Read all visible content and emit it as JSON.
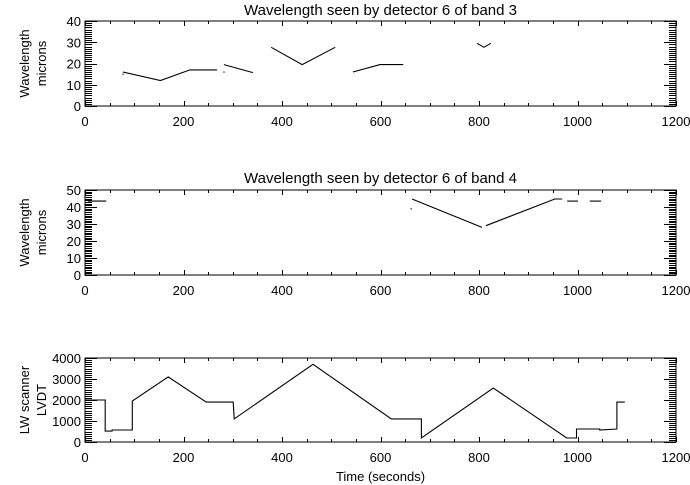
{
  "chart_data": [
    {
      "type": "line",
      "title": "Wavelength seen by detector 6 of band 3",
      "xlabel": "",
      "ylabel": "Wavelength\nmicrons",
      "ylabel_lines": [
        "Wavelength",
        "microns"
      ],
      "xlim": [
        0,
        1200
      ],
      "ylim": [
        0,
        40
      ],
      "xticks": [
        0,
        200,
        400,
        600,
        800,
        1000,
        1200
      ],
      "yticks": [
        0,
        10,
        20,
        30,
        40
      ],
      "grid": false,
      "legend": null,
      "series": [
        {
          "name": "segment-1",
          "x": [
            77
          ],
          "y": [
            15
          ]
        },
        {
          "name": "segment-2",
          "x": [
            77,
            153,
            213,
            268
          ],
          "y": [
            16,
            12,
            17,
            17
          ]
        },
        {
          "name": "segment-3",
          "x": [
            282
          ],
          "y": [
            16
          ]
        },
        {
          "name": "segment-4",
          "x": [
            282,
            341
          ],
          "y": [
            19.5,
            15.7
          ]
        },
        {
          "name": "segment-5",
          "x": [
            378,
            441,
            508
          ],
          "y": [
            27.6,
            19.5,
            27.6
          ]
        },
        {
          "name": "segment-6",
          "x": [
            544,
            599,
            646
          ],
          "y": [
            16,
            19.5,
            19.5
          ]
        },
        {
          "name": "segment-7",
          "x": [
            796,
            810,
            824
          ],
          "y": [
            29.5,
            27.6,
            29.5
          ]
        }
      ]
    },
    {
      "type": "line",
      "title": "Wavelength seen by detector 6 of band 4",
      "xlabel": "",
      "ylabel": "Wavelength\nmicrons",
      "ylabel_lines": [
        "Wavelength",
        "microns"
      ],
      "xlim": [
        0,
        1200
      ],
      "ylim": [
        0,
        50
      ],
      "xticks": [
        0,
        200,
        400,
        600,
        800,
        1000,
        1200
      ],
      "yticks": [
        0,
        10,
        20,
        30,
        40,
        50
      ],
      "grid": false,
      "legend": null,
      "series": [
        {
          "name": "segment-1",
          "x": [
            6,
            43
          ],
          "y": [
            43.5,
            43.5
          ]
        },
        {
          "name": "segment-2",
          "x": [
            662
          ],
          "y": [
            39
          ]
        },
        {
          "name": "segment-3",
          "x": [
            664,
            806
          ],
          "y": [
            44.7,
            28
          ]
        },
        {
          "name": "segment-4",
          "x": [
            814,
            954,
            969
          ],
          "y": [
            29,
            44.7,
            44.7
          ]
        },
        {
          "name": "segment-5",
          "x": [
            979,
            1001
          ],
          "y": [
            43.5,
            43.5
          ]
        },
        {
          "name": "segment-6",
          "x": [
            1025,
            1048
          ],
          "y": [
            43.5,
            43.5
          ]
        }
      ]
    },
    {
      "type": "line",
      "title": "",
      "xlabel": "Time (seconds)",
      "ylabel": "LW scanner\nLVDT",
      "ylabel_lines": [
        "LW scanner",
        "LVDT"
      ],
      "xlim": [
        0,
        1200
      ],
      "ylim": [
        0,
        4000
      ],
      "xticks": [
        0,
        200,
        400,
        600,
        800,
        1000,
        1200
      ],
      "yticks": [
        0,
        1000,
        2000,
        3000,
        4000
      ],
      "grid": false,
      "legend": null,
      "series": [
        {
          "name": "LVDT",
          "x": [
            0,
            41,
            41,
            55,
            55,
            96,
            96,
            169,
            246,
            301,
            303,
            463,
            622,
            683,
            683,
            829,
            978,
            998,
            998,
            1008,
            1045,
            1045,
            1080,
            1080,
            1096
          ],
          "y": [
            2000,
            2000,
            520,
            520,
            570,
            570,
            1950,
            3100,
            1900,
            1900,
            1100,
            3700,
            1100,
            1100,
            190,
            2570,
            190,
            190,
            620,
            620,
            620,
            570,
            620,
            1900,
            1900
          ]
        }
      ]
    }
  ]
}
